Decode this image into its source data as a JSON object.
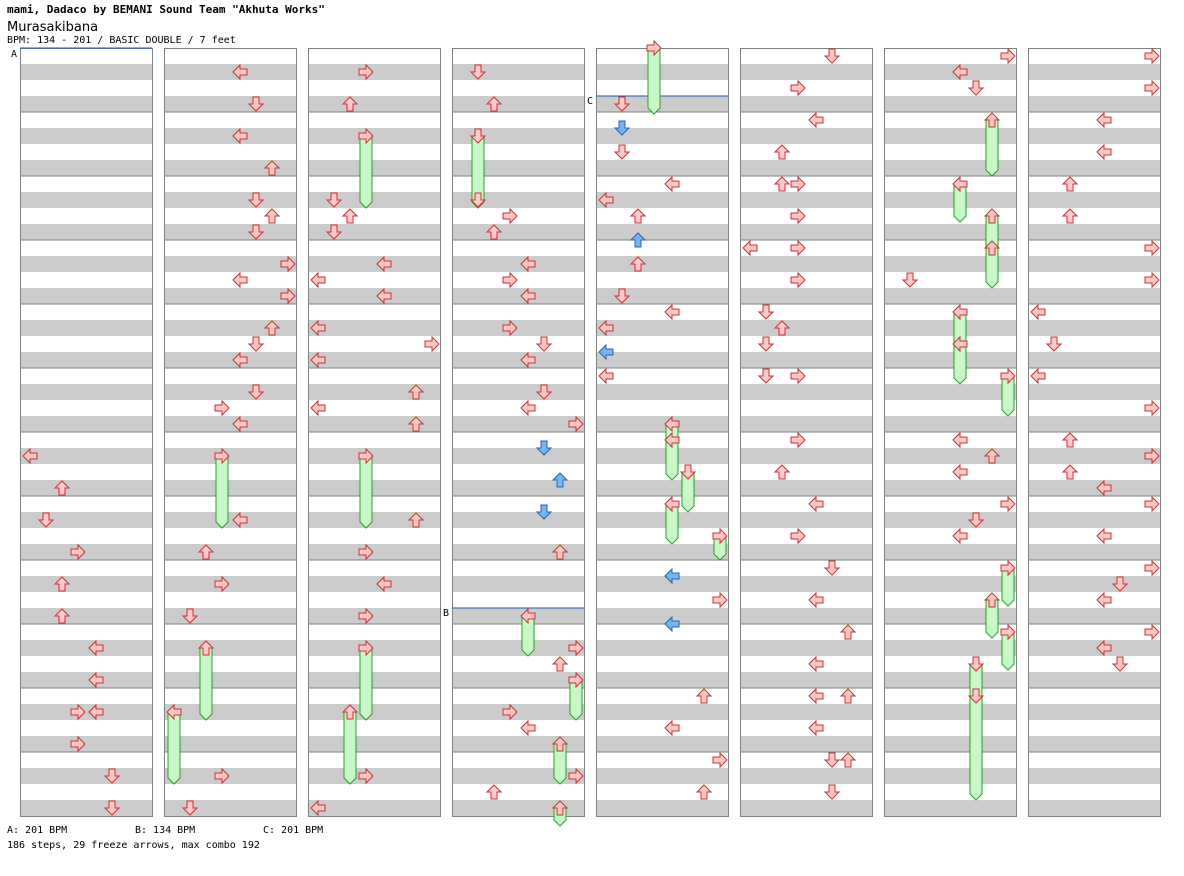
{
  "header": {
    "title": "mami, Dadaco by BEMANI Sound Team \"Akhuta Works\"",
    "song": "Murasakibana",
    "info": "BPM: 134 - 201 / BASIC DOUBLE / 7 feet"
  },
  "section_markers": [
    "A",
    "B",
    "C"
  ],
  "bpm_changes": [
    "A: 201 BPM",
    "B: 134 BPM",
    "C: 201 BPM"
  ],
  "stats": "186 steps, 29 freeze arrows, max combo 192",
  "colors": {
    "stripe": "#cccccc",
    "border": "#808080",
    "arrow_fill": "#ffc8c8",
    "arrow_stroke": "#c83232",
    "blue_fill": "#78b4f0",
    "blue_stroke": "#2864b4",
    "freeze_fill": "#c8f8c8",
    "freeze_stroke": "#28a028",
    "bpm_line": "#1e5aaa"
  },
  "icons": [
    "left-arrow-icon",
    "down-arrow-icon",
    "up-arrow-icon",
    "right-arrow-icon",
    "freeze-arrow-icon"
  ]
}
